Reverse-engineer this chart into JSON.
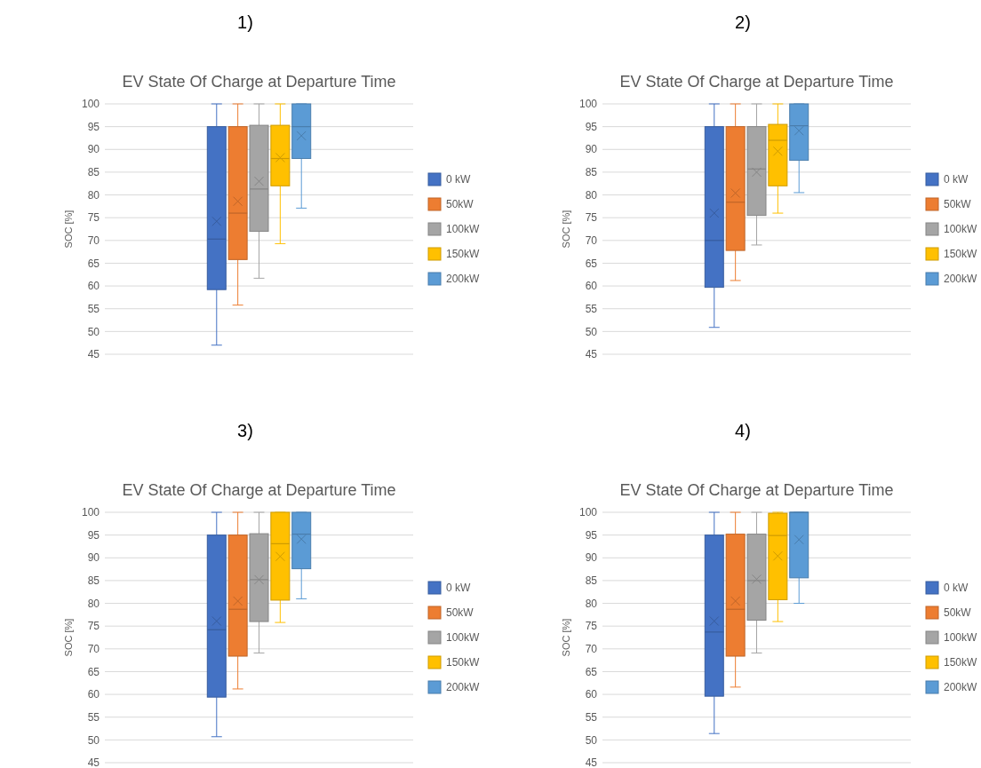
{
  "chart_data": [
    {
      "type": "box",
      "annotations": [
        "1)"
      ],
      "title": "EV State Of Charge at Departure Time",
      "ylabel": "SOC [%]",
      "categories": [
        null
      ],
      "ylim": [
        45,
        100
      ],
      "yticks": [
        45,
        50,
        55,
        60,
        65,
        70,
        75,
        80,
        85,
        90,
        95,
        100
      ],
      "grid": "y",
      "legend": "right",
      "series": [
        {
          "name": "0 kW",
          "color": "#4472c4",
          "boxes": [
            {
              "low": 47,
              "q1": 59.2,
              "median": 70.3,
              "q3": 95,
              "high": 100,
              "mean": 74.2
            }
          ]
        },
        {
          "name": "50kW",
          "color": "#ed7d31",
          "boxes": [
            {
              "low": 55.8,
              "q1": 65.8,
              "median": 76,
              "q3": 95,
              "high": 100,
              "mean": 78.6
            }
          ]
        },
        {
          "name": "100kW",
          "color": "#a5a5a5",
          "boxes": [
            {
              "low": 61.7,
              "q1": 72,
              "median": 81.3,
              "q3": 95.3,
              "high": 100,
              "mean": 83
            }
          ]
        },
        {
          "name": "150kW",
          "color": "#ffc000",
          "boxes": [
            {
              "low": 69.3,
              "q1": 82,
              "median": 88,
              "q3": 95.3,
              "high": 100,
              "mean": 88.2
            }
          ]
        },
        {
          "name": "200kW",
          "color": "#5b9bd5",
          "boxes": [
            {
              "low": 77.1,
              "q1": 88,
              "median": 95,
              "q3": 100,
              "high": 100,
              "mean": 93
            }
          ]
        }
      ]
    },
    {
      "type": "box",
      "annotations": [
        "2)"
      ],
      "title": "EV State Of Charge at Departure Time",
      "ylabel": "SOC [%]",
      "categories": [
        null
      ],
      "ylim": [
        45,
        100
      ],
      "yticks": [
        45,
        50,
        55,
        60,
        65,
        70,
        75,
        80,
        85,
        90,
        95,
        100
      ],
      "grid": "y",
      "legend": "right",
      "series": [
        {
          "name": "0 kW",
          "color": "#4472c4",
          "boxes": [
            {
              "low": 50.9,
              "q1": 59.7,
              "median": 70,
              "q3": 95,
              "high": 100,
              "mean": 76
            }
          ]
        },
        {
          "name": "50kW",
          "color": "#ed7d31",
          "boxes": [
            {
              "low": 61.2,
              "q1": 67.8,
              "median": 78.4,
              "q3": 95,
              "high": 100,
              "mean": 80.4
            }
          ]
        },
        {
          "name": "100kW",
          "color": "#a5a5a5",
          "boxes": [
            {
              "low": 69,
              "q1": 75.5,
              "median": 85.7,
              "q3": 95,
              "high": 100,
              "mean": 85
            }
          ]
        },
        {
          "name": "150kW",
          "color": "#ffc000",
          "boxes": [
            {
              "low": 76,
              "q1": 82,
              "median": 92,
              "q3": 95.5,
              "high": 100,
              "mean": 89.6
            }
          ]
        },
        {
          "name": "200kW",
          "color": "#5b9bd5",
          "boxes": [
            {
              "low": 80.5,
              "q1": 87.6,
              "median": 95.2,
              "q3": 100,
              "high": 100,
              "mean": 94.1
            }
          ]
        }
      ]
    },
    {
      "type": "box",
      "annotations": [
        "3)"
      ],
      "title": "EV State Of Charge at Departure Time",
      "ylabel": "SOC [%]",
      "categories": [
        null
      ],
      "ylim": [
        45,
        100
      ],
      "yticks": [
        45,
        50,
        55,
        60,
        65,
        70,
        75,
        80,
        85,
        90,
        95,
        100
      ],
      "grid": "y",
      "legend": "right",
      "series": [
        {
          "name": "0 kW",
          "color": "#4472c4",
          "boxes": [
            {
              "low": 50.7,
              "q1": 59.4,
              "median": 74.2,
              "q3": 95,
              "high": 100,
              "mean": 76.1
            }
          ]
        },
        {
          "name": "50kW",
          "color": "#ed7d31",
          "boxes": [
            {
              "low": 61.2,
              "q1": 68.4,
              "median": 78.7,
              "q3": 95,
              "high": 100,
              "mean": 80.5
            }
          ]
        },
        {
          "name": "100kW",
          "color": "#a5a5a5",
          "boxes": [
            {
              "low": 69.1,
              "q1": 76,
              "median": 85.2,
              "q3": 95.3,
              "high": 100,
              "mean": 85.2
            }
          ]
        },
        {
          "name": "150kW",
          "color": "#ffc000",
          "boxes": [
            {
              "low": 75.8,
              "q1": 80.7,
              "median": 93.1,
              "q3": 100,
              "high": 100,
              "mean": 90.3
            }
          ]
        },
        {
          "name": "200kW",
          "color": "#5b9bd5",
          "boxes": [
            {
              "low": 81,
              "q1": 87.6,
              "median": 95.2,
              "q3": 100,
              "high": 100,
              "mean": 94.1
            }
          ]
        }
      ]
    },
    {
      "type": "box",
      "annotations": [
        "4)"
      ],
      "title": "EV State Of Charge at Departure Time",
      "ylabel": "SOC [%]",
      "categories": [
        null
      ],
      "ylim": [
        45,
        100
      ],
      "yticks": [
        45,
        50,
        55,
        60,
        65,
        70,
        75,
        80,
        85,
        90,
        95,
        100
      ],
      "grid": "y",
      "legend": "right",
      "series": [
        {
          "name": "0 kW",
          "color": "#4472c4",
          "boxes": [
            {
              "low": 51.4,
              "q1": 59.6,
              "median": 73.7,
              "q3": 95,
              "high": 100,
              "mean": 76.1
            }
          ]
        },
        {
          "name": "50kW",
          "color": "#ed7d31",
          "boxes": [
            {
              "low": 61.6,
              "q1": 68.4,
              "median": 78.7,
              "q3": 95.2,
              "high": 100,
              "mean": 80.5
            }
          ]
        },
        {
          "name": "100kW",
          "color": "#a5a5a5",
          "boxes": [
            {
              "low": 69.1,
              "q1": 76.3,
              "median": 85,
              "q3": 95.2,
              "high": 100,
              "mean": 85.3
            }
          ]
        },
        {
          "name": "150kW",
          "color": "#ffc000",
          "boxes": [
            {
              "low": 76,
              "q1": 80.8,
              "median": 94.9,
              "q3": 99.8,
              "high": 100,
              "mean": 90.4
            }
          ]
        },
        {
          "name": "200kW",
          "color": "#5b9bd5",
          "boxes": [
            {
              "low": 80,
              "q1": 85.6,
              "median": 100,
              "q3": 100,
              "high": 100,
              "mean": 94
            }
          ]
        }
      ]
    }
  ]
}
